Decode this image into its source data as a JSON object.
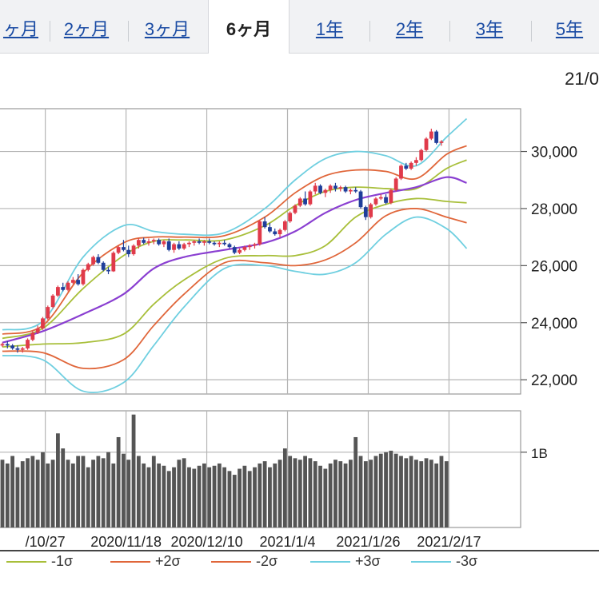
{
  "tabs": [
    {
      "label": "ヶ月",
      "active": false
    },
    {
      "label": "2ヶ月",
      "active": false
    },
    {
      "label": "3ヶ月",
      "active": false
    },
    {
      "label": "6ヶ月",
      "active": true
    },
    {
      "label": "1年",
      "active": false
    },
    {
      "label": "2年",
      "active": false
    },
    {
      "label": "3年",
      "active": false
    },
    {
      "label": "5年",
      "active": false
    }
  ],
  "date_label": "21/0",
  "chart_data": {
    "type": "candlestick",
    "price_ticks": [
      "30,000",
      "28,000",
      "26,000",
      "24,000",
      "22,000"
    ],
    "price_tick_values": [
      30000,
      28000,
      26000,
      24000,
      22000
    ],
    "price_range": [
      21500,
      31500
    ],
    "volume_ticks": [
      "1B"
    ],
    "volume_tick_values": [
      1.0
    ],
    "volume_range": [
      0,
      1.55
    ],
    "x_labels": [
      "/10/27",
      "2020/11/18",
      "2020/12/10",
      "2021/1/4",
      "2021/1/26",
      "2021/2/17"
    ],
    "x_label_positions": [
      8.5,
      24.5,
      40.5,
      56.5,
      72.5,
      88.5
    ],
    "grid": true,
    "num_sessions": 93,
    "candles": [
      [
        23200,
        23300,
        23150,
        23250
      ],
      [
        23250,
        23350,
        23100,
        23200
      ],
      [
        23200,
        23250,
        23050,
        23100
      ],
      [
        23100,
        23200,
        22950,
        23050
      ],
      [
        23050,
        23150,
        22950,
        23100
      ],
      [
        23100,
        23450,
        23050,
        23400
      ],
      [
        23400,
        23700,
        23350,
        23650
      ],
      [
        23650,
        23900,
        23600,
        23800
      ],
      [
        23800,
        24200,
        23750,
        24150
      ],
      [
        24150,
        24600,
        24100,
        24550
      ],
      [
        24550,
        25000,
        24500,
        24950
      ],
      [
        24950,
        25300,
        24900,
        25250
      ],
      [
        25250,
        25400,
        25100,
        25150
      ],
      [
        25150,
        25450,
        25100,
        25400
      ],
      [
        25400,
        25600,
        25350,
        25500
      ],
      [
        25500,
        25700,
        25300,
        25350
      ],
      [
        25350,
        25900,
        25300,
        25850
      ],
      [
        25850,
        26100,
        25800,
        26050
      ],
      [
        26050,
        26350,
        26000,
        26300
      ],
      [
        26300,
        26400,
        26050,
        26100
      ],
      [
        26100,
        26150,
        25800,
        25850
      ],
      [
        25850,
        25950,
        25700,
        25800
      ],
      [
        25800,
        26500,
        25780,
        26450
      ],
      [
        26450,
        26700,
        26400,
        26650
      ],
      [
        26650,
        26900,
        26500,
        26550
      ],
      [
        26550,
        26700,
        26300,
        26400
      ],
      [
        26400,
        26750,
        26350,
        26700
      ],
      [
        26700,
        26950,
        26600,
        26900
      ],
      [
        26900,
        26980,
        26750,
        26800
      ],
      [
        26800,
        26950,
        26700,
        26850
      ],
      [
        26850,
        26950,
        26750,
        26900
      ],
      [
        26900,
        26950,
        26700,
        26750
      ],
      [
        26750,
        26900,
        26650,
        26850
      ],
      [
        26850,
        26950,
        26500,
        26550
      ],
      [
        26550,
        26800,
        26450,
        26750
      ],
      [
        26750,
        26850,
        26550,
        26600
      ],
      [
        26600,
        26800,
        26550,
        26750
      ],
      [
        26750,
        26850,
        26650,
        26800
      ],
      [
        26800,
        26900,
        26700,
        26850
      ],
      [
        26850,
        26950,
        26750,
        26800
      ],
      [
        26800,
        26900,
        26700,
        26850
      ],
      [
        26850,
        26950,
        26750,
        26800
      ],
      [
        26800,
        26850,
        26700,
        26750
      ],
      [
        26750,
        26850,
        26650,
        26800
      ],
      [
        26800,
        26900,
        26700,
        26750
      ],
      [
        26750,
        26800,
        26600,
        26650
      ],
      [
        26650,
        26700,
        26400,
        26450
      ],
      [
        26450,
        26600,
        26400,
        26550
      ],
      [
        26550,
        26700,
        26500,
        26650
      ],
      [
        26650,
        26750,
        26550,
        26700
      ],
      [
        26700,
        26800,
        26600,
        26750
      ],
      [
        26750,
        27600,
        26700,
        27550
      ],
      [
        27550,
        27700,
        27300,
        27350
      ],
      [
        27350,
        27500,
        27150,
        27200
      ],
      [
        27200,
        27300,
        27050,
        27100
      ],
      [
        27100,
        27300,
        27000,
        27250
      ],
      [
        27250,
        27600,
        27200,
        27550
      ],
      [
        27550,
        27900,
        27500,
        27850
      ],
      [
        27850,
        28150,
        27800,
        28100
      ],
      [
        28100,
        28400,
        28050,
        28350
      ],
      [
        28350,
        28600,
        28100,
        28150
      ],
      [
        28150,
        28650,
        28100,
        28600
      ],
      [
        28600,
        28900,
        28500,
        28800
      ],
      [
        28800,
        28850,
        28500,
        28550
      ],
      [
        28550,
        28700,
        28400,
        28650
      ],
      [
        28650,
        28850,
        28550,
        28800
      ],
      [
        28800,
        28900,
        28600,
        28700
      ],
      [
        28700,
        28800,
        28600,
        28750
      ],
      [
        28750,
        28800,
        28550,
        28600
      ],
      [
        28600,
        28700,
        28500,
        28650
      ],
      [
        28650,
        28750,
        28550,
        28600
      ],
      [
        28600,
        28650,
        28000,
        28050
      ],
      [
        28050,
        28100,
        27600,
        27700
      ],
      [
        27700,
        28200,
        27650,
        28150
      ],
      [
        28150,
        28400,
        28100,
        28350
      ],
      [
        28350,
        28500,
        28300,
        28400
      ],
      [
        28400,
        28500,
        28150,
        28200
      ],
      [
        28200,
        28700,
        28150,
        28650
      ],
      [
        28650,
        29100,
        28600,
        29050
      ],
      [
        29050,
        29550,
        29000,
        29500
      ],
      [
        29500,
        29600,
        29350,
        29400
      ],
      [
        29400,
        29650,
        29350,
        29600
      ],
      [
        29600,
        29800,
        29500,
        29700
      ],
      [
        29700,
        30100,
        29650,
        30050
      ],
      [
        30050,
        30500,
        30000,
        30450
      ],
      [
        30450,
        30800,
        30400,
        30700
      ],
      [
        30700,
        30750,
        30250,
        30300
      ],
      [
        30300,
        30400,
        30200,
        30350
      ]
    ],
    "volumes": [
      0.9,
      0.85,
      0.95,
      0.8,
      0.88,
      0.92,
      0.95,
      0.9,
      1.0,
      0.85,
      0.9,
      1.25,
      1.05,
      0.9,
      0.85,
      0.95,
      0.95,
      0.8,
      0.9,
      0.95,
      0.92,
      1.0,
      0.85,
      1.2,
      0.98,
      0.9,
      1.5,
      0.95,
      0.85,
      0.8,
      0.95,
      0.85,
      0.82,
      0.75,
      0.8,
      0.9,
      0.92,
      0.8,
      0.78,
      0.82,
      0.85,
      0.8,
      0.82,
      0.85,
      0.8,
      0.75,
      0.7,
      0.78,
      0.82,
      0.75,
      0.8,
      0.85,
      0.88,
      0.8,
      0.85,
      0.9,
      1.05,
      0.95,
      0.92,
      0.9,
      0.95,
      0.92,
      0.88,
      0.82,
      0.78,
      0.85,
      0.9,
      0.88,
      0.85,
      0.9,
      1.2,
      0.95,
      0.88,
      0.9,
      0.95,
      0.98,
      1.0,
      1.02,
      0.98,
      0.95,
      0.92,
      0.95,
      0.9,
      0.88,
      0.92,
      0.9,
      0.85,
      0.95,
      0.88,
      0.0,
      0.0,
      0.0,
      0.0
    ],
    "bands": {
      "ma": [
        [
          0,
          23300
        ],
        [
          8,
          23700
        ],
        [
          16,
          24300
        ],
        [
          24,
          25000
        ],
        [
          30,
          25900
        ],
        [
          36,
          26300
        ],
        [
          44,
          26550
        ],
        [
          52,
          26800
        ],
        [
          58,
          27200
        ],
        [
          64,
          27850
        ],
        [
          70,
          28300
        ],
        [
          76,
          28550
        ],
        [
          82,
          28750
        ],
        [
          88,
          29100
        ],
        [
          92,
          28900
        ]
      ],
      "p1": [
        [
          0,
          23450
        ],
        [
          8,
          23800
        ],
        [
          16,
          25200
        ],
        [
          24,
          26350
        ],
        [
          30,
          26850
        ],
        [
          36,
          26900
        ],
        [
          44,
          26900
        ],
        [
          52,
          27400
        ],
        [
          58,
          28100
        ],
        [
          64,
          28600
        ],
        [
          70,
          28750
        ],
        [
          76,
          28700
        ],
        [
          82,
          28700
        ],
        [
          88,
          29400
        ],
        [
          92,
          29700
        ]
      ],
      "m1": [
        [
          0,
          23150
        ],
        [
          8,
          23250
        ],
        [
          16,
          23300
        ],
        [
          24,
          23600
        ],
        [
          30,
          24650
        ],
        [
          36,
          25500
        ],
        [
          44,
          26250
        ],
        [
          52,
          26350
        ],
        [
          58,
          26350
        ],
        [
          64,
          26700
        ],
        [
          70,
          27700
        ],
        [
          76,
          28150
        ],
        [
          82,
          28350
        ],
        [
          88,
          28250
        ],
        [
          92,
          28200
        ]
      ],
      "p2": [
        [
          0,
          23600
        ],
        [
          8,
          23900
        ],
        [
          16,
          25750
        ],
        [
          24,
          26800
        ],
        [
          30,
          27000
        ],
        [
          36,
          27000
        ],
        [
          44,
          27050
        ],
        [
          52,
          27700
        ],
        [
          58,
          28550
        ],
        [
          64,
          29150
        ],
        [
          70,
          29350
        ],
        [
          76,
          29300
        ],
        [
          82,
          29050
        ],
        [
          88,
          29900
        ],
        [
          92,
          30200
        ]
      ],
      "m2": [
        [
          0,
          23000
        ],
        [
          8,
          22950
        ],
        [
          16,
          22400
        ],
        [
          24,
          22700
        ],
        [
          30,
          23900
        ],
        [
          36,
          25000
        ],
        [
          44,
          26100
        ],
        [
          52,
          26100
        ],
        [
          58,
          26000
        ],
        [
          64,
          26200
        ],
        [
          70,
          26800
        ],
        [
          76,
          27750
        ],
        [
          82,
          28000
        ],
        [
          88,
          27700
        ],
        [
          92,
          27500
        ]
      ],
      "p3": [
        [
          0,
          23750
        ],
        [
          8,
          24050
        ],
        [
          16,
          26300
        ],
        [
          24,
          27400
        ],
        [
          30,
          27200
        ],
        [
          36,
          27100
        ],
        [
          44,
          27150
        ],
        [
          52,
          28000
        ],
        [
          58,
          29000
        ],
        [
          64,
          29750
        ],
        [
          70,
          30000
        ],
        [
          76,
          29850
        ],
        [
          82,
          29500
        ],
        [
          88,
          30500
        ],
        [
          92,
          31150
        ]
      ],
      "m3": [
        [
          0,
          22850
        ],
        [
          8,
          22700
        ],
        [
          16,
          21600
        ],
        [
          24,
          21900
        ],
        [
          30,
          23200
        ],
        [
          36,
          24550
        ],
        [
          44,
          25900
        ],
        [
          52,
          26000
        ],
        [
          58,
          25800
        ],
        [
          64,
          25700
        ],
        [
          70,
          26100
        ],
        [
          76,
          27100
        ],
        [
          82,
          27700
        ],
        [
          88,
          27300
        ],
        [
          92,
          26600
        ]
      ]
    },
    "band_colors": {
      "ma": "#8a3fd1",
      "p1": "#a8bf3a",
      "m1": "#a8bf3a",
      "p2": "#e0663a",
      "m2": "#e0663a",
      "p3": "#6fcfe0",
      "m3": "#6fcfe0"
    },
    "up_color": "#e03a4a",
    "down_color": "#1f3e9a",
    "volume_color": "#555555",
    "legend": [
      {
        "label": "-1σ",
        "color": "#a8bf3a"
      },
      {
        "label": "+2σ",
        "color": "#e0663a"
      },
      {
        "label": "-2σ",
        "color": "#e0663a"
      },
      {
        "label": "+3σ",
        "color": "#6fcfe0"
      },
      {
        "label": "-3σ",
        "color": "#6fcfe0"
      }
    ]
  }
}
